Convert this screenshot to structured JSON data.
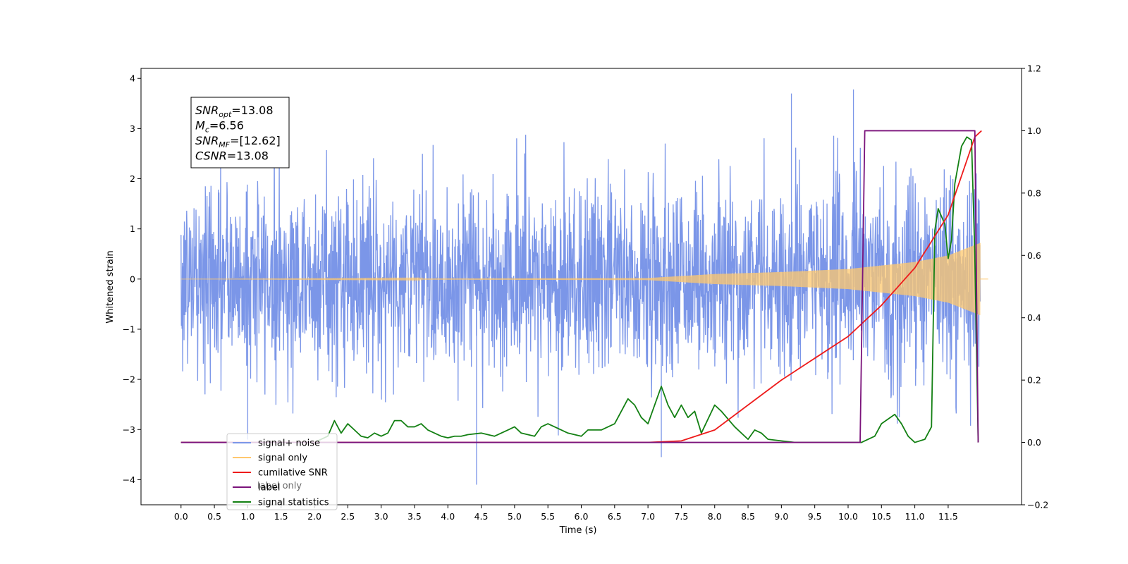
{
  "chart_data": {
    "type": "line",
    "xlabel": "Time (s)",
    "ylabel": "Whitened strain",
    "xlim": [
      -0.6,
      12.6
    ],
    "ylim": [
      -4.5,
      4.2
    ],
    "y2lim": [
      -0.2,
      1.2
    ],
    "x_ticks": [
      "0.0",
      "0.5",
      "1.0",
      "1.5",
      "2.0",
      "2.5",
      "3.0",
      "3.5",
      "4.0",
      "4.5",
      "5.0",
      "5.5",
      "6.0",
      "6.5",
      "7.0",
      "7.5",
      "8.0",
      "8.5",
      "9.0",
      "9.5",
      "10.0",
      "10.5",
      "11.0",
      "11.5"
    ],
    "y_ticks": [
      "−4",
      "−3",
      "−2",
      "−1",
      "0",
      "1",
      "2",
      "3",
      "4"
    ],
    "y2_ticks": [
      "−0.2",
      "0.0",
      "0.2",
      "0.4",
      "0.6",
      "0.8",
      "1.0",
      "1.2"
    ],
    "legend": {
      "placement": "lower-left",
      "entries": [
        {
          "label": "signal+ noise",
          "color": "#7b96e8"
        },
        {
          "label": "signal only",
          "color": "#ffc86e"
        },
        {
          "label": "cumilative SNR",
          "color": "#ee1b1b"
        },
        {
          "label": "label",
          "color": "#7b137b"
        },
        {
          "label": "signal statistics",
          "color": "#138013"
        }
      ],
      "overlapped_text": "label only"
    },
    "annotation": [
      {
        "main": "SNR",
        "sub": "opt",
        "rest": "=13.08"
      },
      {
        "main": "M",
        "sub": "c",
        "rest": "=6.56"
      },
      {
        "main": "SNR",
        "sub": "MF",
        "rest": "=[12.62]"
      },
      {
        "main": "CSNR",
        "sub": "",
        "rest": "=13.08"
      }
    ],
    "series": [
      {
        "name": "signal+ noise",
        "axis": "left",
        "color": "#7b96e8",
        "x_range": [
          0.0,
          11.98
        ],
        "noise_envelope": [
          -2.2,
          2.2
        ],
        "y_extremes": [
          -4.1,
          3.78
        ],
        "note_points": [
          [
            4.43,
            -4.1
          ],
          [
            10.08,
            3.78
          ],
          [
            9.15,
            3.7
          ],
          [
            7.2,
            -3.55
          ],
          [
            1.0,
            -3.2
          ]
        ]
      },
      {
        "name": "signal only",
        "axis": "left",
        "color": "#ffc86e",
        "amplitude_envelope": [
          [
            0.0,
            0.0
          ],
          [
            7.0,
            0.02
          ],
          [
            8.0,
            0.1
          ],
          [
            9.0,
            0.14
          ],
          [
            10.0,
            0.2
          ],
          [
            11.0,
            0.34
          ],
          [
            11.5,
            0.47
          ],
          [
            11.98,
            0.72
          ]
        ]
      },
      {
        "name": "cumilative SNR",
        "axis": "right",
        "color": "#ee1b1b",
        "points": [
          [
            0.0,
            0.0
          ],
          [
            7.0,
            0.0
          ],
          [
            7.5,
            0.005
          ],
          [
            8.0,
            0.04
          ],
          [
            8.5,
            0.12
          ],
          [
            9.0,
            0.2
          ],
          [
            9.5,
            0.27
          ],
          [
            10.0,
            0.34
          ],
          [
            10.5,
            0.44
          ],
          [
            11.0,
            0.56
          ],
          [
            11.5,
            0.73
          ],
          [
            11.9,
            0.98
          ],
          [
            12.0,
            1.0
          ]
        ]
      },
      {
        "name": "label",
        "axis": "right",
        "color": "#7b137b",
        "points": [
          [
            0.0,
            0.0
          ],
          [
            10.18,
            0.0
          ],
          [
            10.25,
            1.0
          ],
          [
            11.9,
            1.0
          ],
          [
            11.95,
            0.0
          ]
        ]
      },
      {
        "name": "signal statistics",
        "axis": "right",
        "color": "#138013",
        "points": [
          [
            0.0,
            0.0
          ],
          [
            2.0,
            0.0
          ],
          [
            2.2,
            0.02
          ],
          [
            2.3,
            0.07
          ],
          [
            2.4,
            0.03
          ],
          [
            2.5,
            0.06
          ],
          [
            2.6,
            0.04
          ],
          [
            2.7,
            0.02
          ],
          [
            2.8,
            0.015
          ],
          [
            2.9,
            0.03
          ],
          [
            3.0,
            0.02
          ],
          [
            3.1,
            0.03
          ],
          [
            3.2,
            0.07
          ],
          [
            3.3,
            0.07
          ],
          [
            3.4,
            0.05
          ],
          [
            3.5,
            0.05
          ],
          [
            3.6,
            0.06
          ],
          [
            3.7,
            0.04
          ],
          [
            3.8,
            0.03
          ],
          [
            3.9,
            0.02
          ],
          [
            4.0,
            0.015
          ],
          [
            4.1,
            0.02
          ],
          [
            4.2,
            0.02
          ],
          [
            4.3,
            0.025
          ],
          [
            4.5,
            0.03
          ],
          [
            4.7,
            0.02
          ],
          [
            4.9,
            0.04
          ],
          [
            5.0,
            0.05
          ],
          [
            5.1,
            0.03
          ],
          [
            5.3,
            0.02
          ],
          [
            5.4,
            0.05
          ],
          [
            5.5,
            0.06
          ],
          [
            5.6,
            0.05
          ],
          [
            5.8,
            0.03
          ],
          [
            6.0,
            0.02
          ],
          [
            6.1,
            0.04
          ],
          [
            6.3,
            0.04
          ],
          [
            6.5,
            0.06
          ],
          [
            6.7,
            0.14
          ],
          [
            6.8,
            0.12
          ],
          [
            6.9,
            0.08
          ],
          [
            7.0,
            0.06
          ],
          [
            7.2,
            0.18
          ],
          [
            7.3,
            0.12
          ],
          [
            7.4,
            0.08
          ],
          [
            7.5,
            0.12
          ],
          [
            7.6,
            0.08
          ],
          [
            7.7,
            0.1
          ],
          [
            7.8,
            0.03
          ],
          [
            8.0,
            0.12
          ],
          [
            8.1,
            0.1
          ],
          [
            8.3,
            0.05
          ],
          [
            8.5,
            0.01
          ],
          [
            8.6,
            0.04
          ],
          [
            8.7,
            0.03
          ],
          [
            8.8,
            0.01
          ],
          [
            9.0,
            0.005
          ],
          [
            9.2,
            0.0
          ],
          [
            10.2,
            0.0
          ],
          [
            10.4,
            0.02
          ],
          [
            10.5,
            0.06
          ],
          [
            10.7,
            0.09
          ],
          [
            10.8,
            0.06
          ],
          [
            10.9,
            0.02
          ],
          [
            11.0,
            0.0
          ],
          [
            11.15,
            0.01
          ],
          [
            11.25,
            0.05
          ],
          [
            11.3,
            0.68
          ],
          [
            11.35,
            0.75
          ],
          [
            11.45,
            0.7
          ],
          [
            11.5,
            0.59
          ],
          [
            11.55,
            0.65
          ],
          [
            11.6,
            0.83
          ],
          [
            11.7,
            0.95
          ],
          [
            11.78,
            0.98
          ],
          [
            11.85,
            0.97
          ],
          [
            11.9,
            0.6
          ],
          [
            11.95,
            0.0
          ]
        ]
      }
    ]
  }
}
